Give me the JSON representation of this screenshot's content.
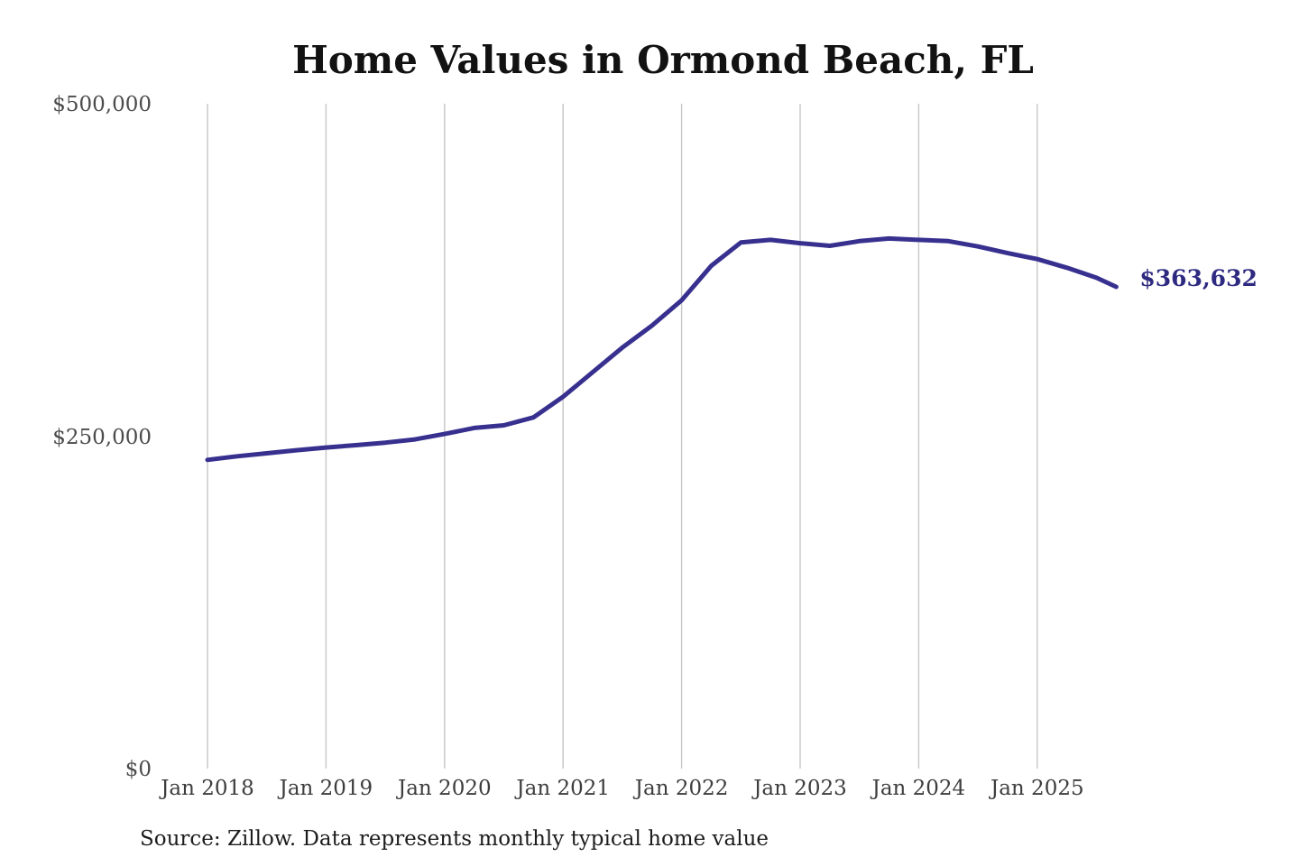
{
  "chart_data": {
    "type": "line",
    "title": "Home Values in Ormond Beach, FL",
    "source": "Source: Zillow. Data represents monthly typical home value",
    "xlabel": "",
    "ylabel": "",
    "ylim": [
      0,
      500000
    ],
    "grid": "vertical-only",
    "legend": "none",
    "line_color": "#37308f",
    "end_label_color": "#2e2a80",
    "grid_color": "#c6c6c6",
    "axis_text_color": "#3d3d3d",
    "final_value_label": "$363,632",
    "y_ticks": [
      {
        "label": "$500,000",
        "value": 500000
      },
      {
        "label": "$250,000",
        "value": 250000
      },
      {
        "label": "$0",
        "value": 0
      }
    ],
    "x_ticks": [
      {
        "label": "Jan 2018"
      },
      {
        "label": "Jan 2019"
      },
      {
        "label": "Jan 2020"
      },
      {
        "label": "Jan 2021"
      },
      {
        "label": "Jan 2022"
      },
      {
        "label": "Jan 2023"
      },
      {
        "label": "Jan 2024"
      },
      {
        "label": "Jan 2025"
      }
    ],
    "x": [
      "Jan 2018",
      "Apr 2018",
      "Jul 2018",
      "Oct 2018",
      "Jan 2019",
      "Apr 2019",
      "Jul 2019",
      "Oct 2019",
      "Jan 2020",
      "Apr 2020",
      "Jul 2020",
      "Oct 2020",
      "Jan 2021",
      "Apr 2021",
      "Jul 2021",
      "Oct 2021",
      "Jan 2022",
      "Apr 2022",
      "Jul 2022",
      "Oct 2022",
      "Jan 2023",
      "Apr 2023",
      "Jul 2023",
      "Oct 2023",
      "Jan 2024",
      "Apr 2024",
      "Jul 2024",
      "Oct 2024",
      "Jan 2025",
      "Apr 2025",
      "Jul 2025",
      "Sep 2025"
    ],
    "values": [
      233500,
      236200,
      238500,
      240800,
      242800,
      244600,
      246500,
      248900,
      253000,
      257500,
      259500,
      265500,
      281000,
      299500,
      318000,
      334500,
      353500,
      379500,
      397000,
      399000,
      396500,
      394500,
      398000,
      400000,
      399000,
      398000,
      394000,
      389000,
      384500,
      378000,
      370500,
      363632
    ]
  }
}
